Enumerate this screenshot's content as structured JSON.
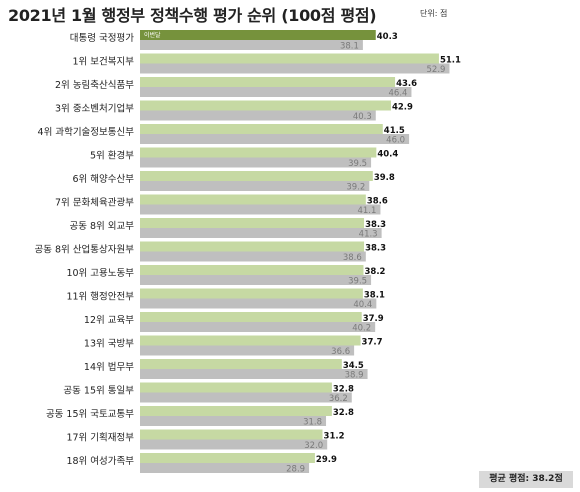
{
  "header": {
    "title": "2021년 1월 행정부 정책수행 평가 순위 (100점 평점)",
    "unit": "단위: 점"
  },
  "footer": {
    "average": "평균 평점: 38.2점"
  },
  "colors": {
    "this_month": "#c6d9a3",
    "highlight": "#76923c",
    "last_month": "#bfbfbf"
  },
  "chart_data": {
    "type": "bar",
    "orientation": "horizontal",
    "title": "2021년 1월 행정부 정책수행 평가 순위 (100점 평점)",
    "categories": [
      "대통령 국정평가",
      "1위 보건복지부",
      "2위 농림축산식품부",
      "3위 중소벤처기업부",
      "4위 과학기술정보통신부",
      "5위 환경부",
      "6위 해양수산부",
      "7위 문화체육관광부",
      "공동 8위 외교부",
      "공동 8위 산업통상자원부",
      "10위 고용노동부",
      "11위 행정안전부",
      "12위 교육부",
      "13위 국방부",
      "14위 법무부",
      "공동 15위 통일부",
      "공동 15위 국토교통부",
      "17위 기획재정부",
      "18위 여성가족부"
    ],
    "series": [
      {
        "name": "이번달",
        "values": [
          40.3,
          51.1,
          43.6,
          42.9,
          41.5,
          40.4,
          39.8,
          38.6,
          38.3,
          38.3,
          38.2,
          38.1,
          37.9,
          37.7,
          34.5,
          32.8,
          32.8,
          31.2,
          29.9
        ]
      },
      {
        "values": [
          38.1,
          52.9,
          46.4,
          40.3,
          46.0,
          39.5,
          39.2,
          41.1,
          41.3,
          38.6,
          39.5,
          40.4,
          40.2,
          36.6,
          38.9,
          36.2,
          31.8,
          32.0,
          28.9
        ]
      }
    ],
    "legend": "inside-first-bar",
    "grid": false
  }
}
